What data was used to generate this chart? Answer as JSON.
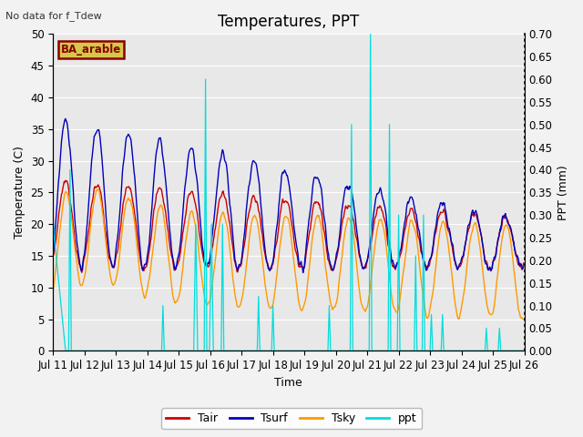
{
  "title": "Temperatures, PPT",
  "no_data_text": "No data for f_Tdew",
  "station_label": "BA_arable",
  "xlabel": "Time",
  "ylabel_left": "Temperature (C)",
  "ylabel_right": "PPT (mm)",
  "ylim_left": [
    0,
    50
  ],
  "ylim_right": [
    0.0,
    0.7
  ],
  "yticks_left": [
    0,
    5,
    10,
    15,
    20,
    25,
    30,
    35,
    40,
    45,
    50
  ],
  "yticks_right": [
    0.0,
    0.05,
    0.1,
    0.15,
    0.2,
    0.25,
    0.3,
    0.35,
    0.4,
    0.45,
    0.5,
    0.55,
    0.6,
    0.65,
    0.7
  ],
  "xtick_days": [
    11,
    12,
    13,
    14,
    15,
    16,
    17,
    18,
    19,
    20,
    21,
    22,
    23,
    24,
    25,
    26
  ],
  "colors": {
    "Tair": "#cc0000",
    "Tsurf": "#0000bb",
    "Tsky": "#ff9900",
    "ppt": "#00dddd"
  },
  "legend_entries": [
    "Tair",
    "Tsurf",
    "Tsky",
    "ppt"
  ],
  "plot_bg_color": "#e8e8e8",
  "fig_bg_color": "#f2f2f2",
  "title_fontsize": 12,
  "label_fontsize": 9,
  "tick_fontsize": 8.5,
  "legend_fontsize": 9
}
